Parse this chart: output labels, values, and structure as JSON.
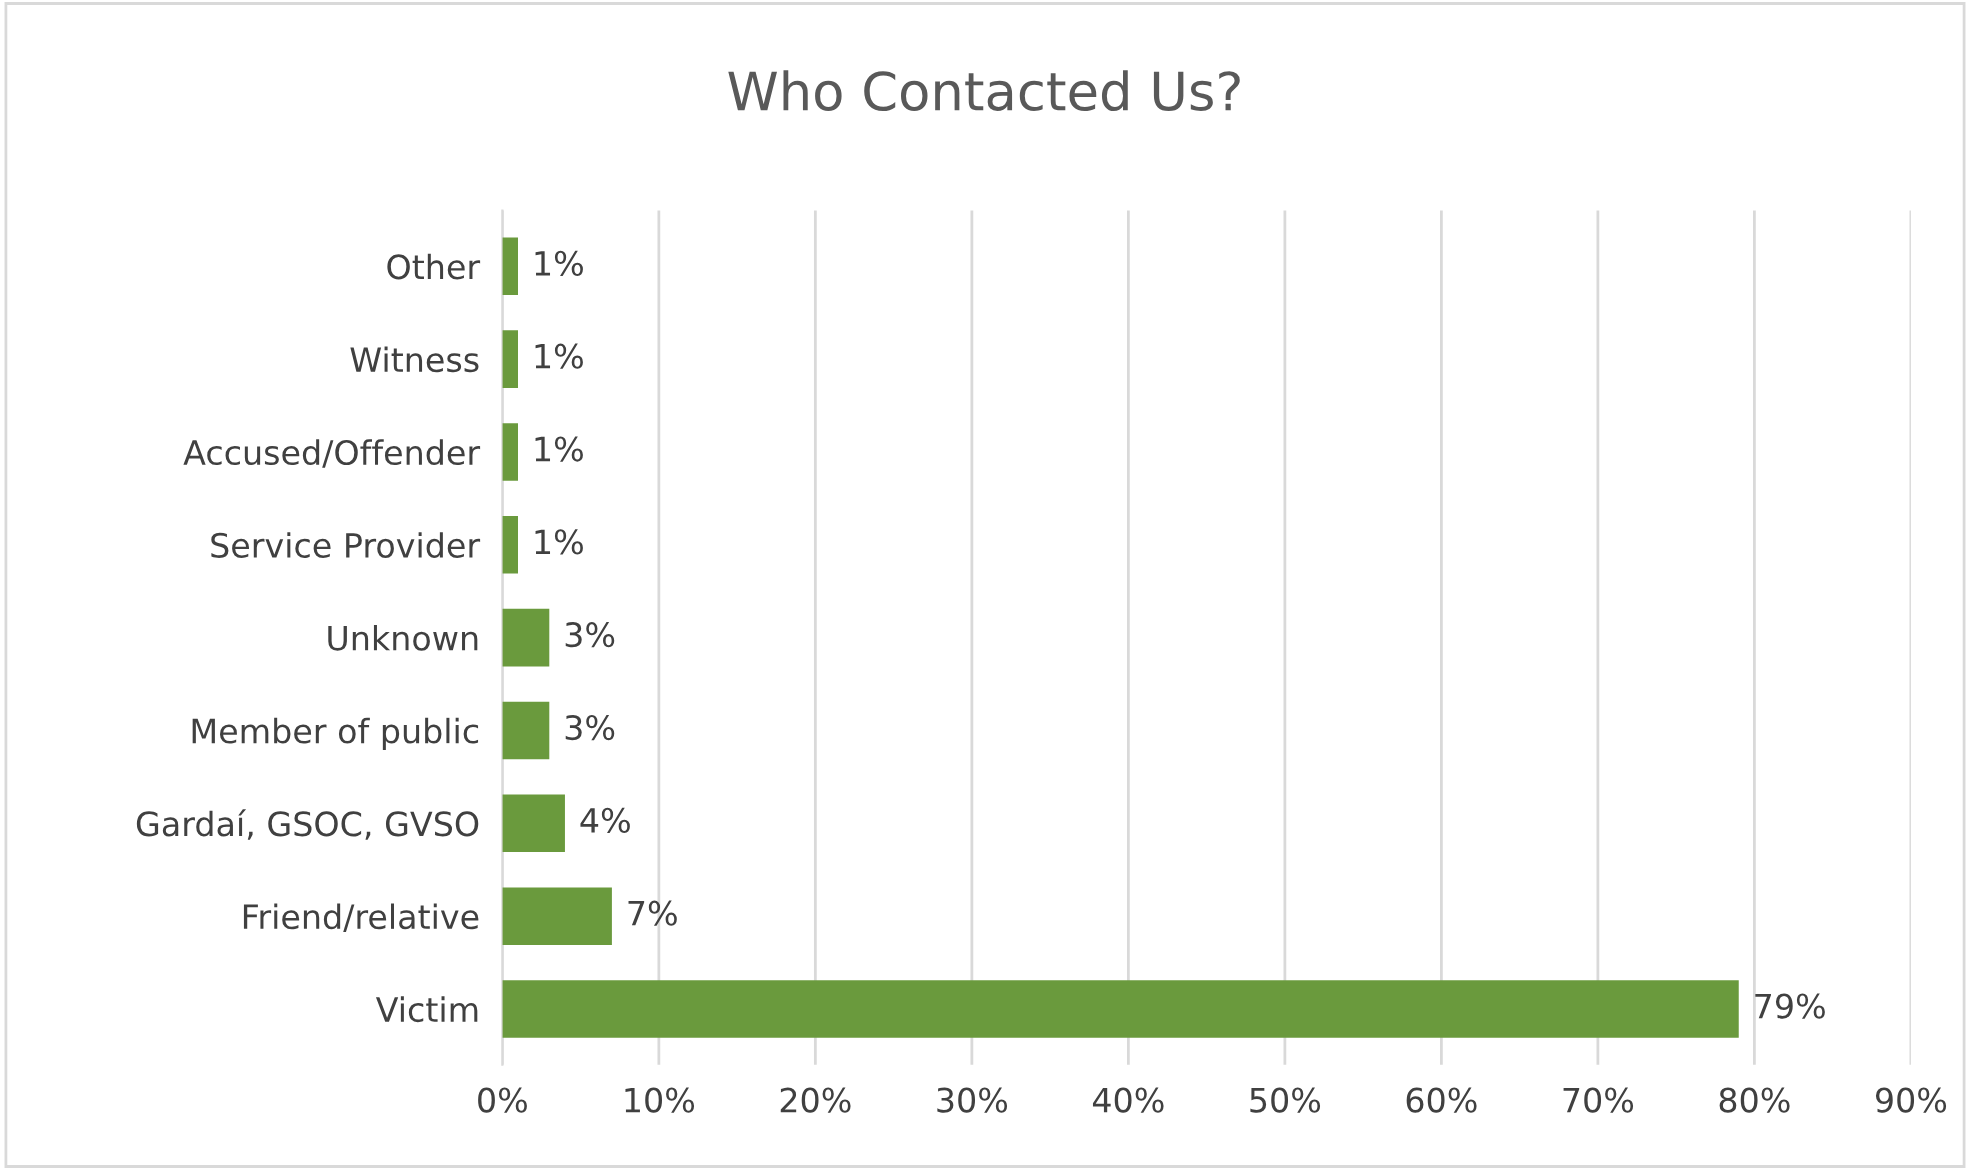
{
  "chart_data": {
    "type": "bar",
    "orientation": "horizontal",
    "title": "Who Contacted Us?",
    "categories": [
      "Other",
      "Witness",
      "Accused/Offender",
      "Service Provider",
      "Unknown",
      "Member of public",
      "Gardaí, GSOC, GVSO",
      "Friend/relative",
      "Victim"
    ],
    "values": [
      1,
      1,
      1,
      1,
      3,
      3,
      4,
      7,
      79
    ],
    "value_labels": [
      "1%",
      "1%",
      "1%",
      "1%",
      "3%",
      "3%",
      "4%",
      "7%",
      "79%"
    ],
    "color": "#6a9a3d",
    "xlim": [
      0,
      90
    ],
    "xticks": [
      {
        "value": 0,
        "label": "0%"
      },
      {
        "value": 10,
        "label": "10%"
      },
      {
        "value": 20,
        "label": "20%"
      },
      {
        "value": 30,
        "label": "30%"
      },
      {
        "value": 40,
        "label": "40%"
      },
      {
        "value": 50,
        "label": "50%"
      },
      {
        "value": 60,
        "label": "60%"
      },
      {
        "value": 70,
        "label": "70%"
      },
      {
        "value": 80,
        "label": "80%"
      },
      {
        "value": 90,
        "label": "90%"
      }
    ],
    "grid": "x",
    "legend": false
  }
}
